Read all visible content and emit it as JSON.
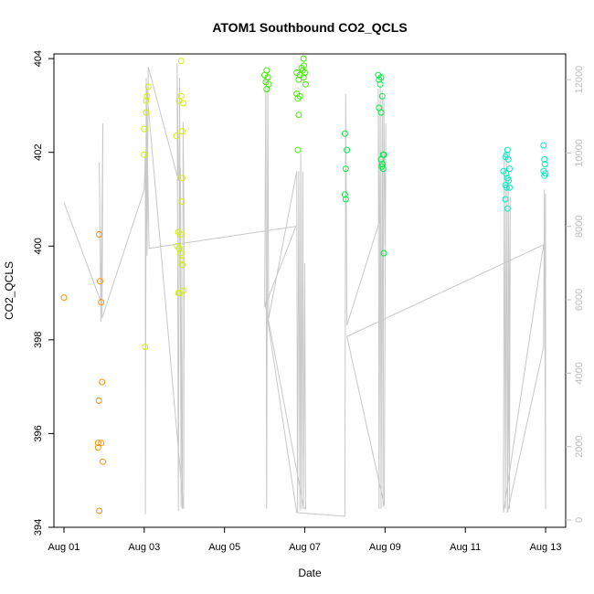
{
  "chart_data": {
    "type": "scatter",
    "title": "ATOM1 Southbound CO2_QCLS",
    "xlabel": "Date",
    "ylabel": "CO2_QCLS",
    "x_ticks": [
      "Aug 01",
      "Aug 03",
      "Aug 05",
      "Aug 07",
      "Aug 09",
      "Aug 11",
      "Aug 13"
    ],
    "x_tick_days": [
      1,
      3,
      5,
      7,
      9,
      11,
      13
    ],
    "xlim": [
      0.75,
      13.5
    ],
    "ylim": [
      394,
      404.1
    ],
    "y_ticks": [
      394,
      396,
      398,
      400,
      402,
      404
    ],
    "y2_ticks": [
      0,
      2000,
      4000,
      6000,
      8000,
      10000,
      12000
    ],
    "y2lim": [
      -200,
      12700
    ],
    "colors": {
      "orange": "#ff8c00",
      "yellowgreen": "#d4f000",
      "green": "#40ee00",
      "lime": "#00ee40",
      "cyan": "#00eec0",
      "altitude": "#c8c8c8"
    },
    "series": [
      {
        "color": "#ff8c00",
        "points": [
          [
            1.0,
            398.9
          ],
          [
            1.88,
            400.25
          ],
          [
            1.9,
            399.25
          ],
          [
            1.93,
            398.8
          ],
          [
            1.95,
            397.1
          ],
          [
            1.87,
            396.7
          ],
          [
            1.85,
            395.8
          ],
          [
            1.93,
            395.8
          ],
          [
            1.85,
            395.7
          ],
          [
            1.97,
            395.4
          ],
          [
            1.88,
            394.35
          ]
        ]
      },
      {
        "color": "#d4f000",
        "points": [
          [
            3.02,
            397.85
          ],
          [
            3.0,
            401.95
          ],
          [
            3.0,
            402.5
          ],
          [
            3.05,
            402.85
          ],
          [
            3.05,
            403.1
          ],
          [
            3.07,
            403.2
          ],
          [
            3.1,
            403.4
          ],
          [
            3.8,
            402.35
          ],
          [
            3.87,
            403.1
          ],
          [
            3.92,
            403.2
          ],
          [
            3.97,
            403.05
          ],
          [
            3.92,
            403.95
          ],
          [
            3.95,
            402.45
          ],
          [
            3.95,
            401.45
          ],
          [
            3.93,
            400.95
          ],
          [
            3.85,
            400.3
          ],
          [
            3.9,
            400.25
          ],
          [
            3.82,
            400.0
          ],
          [
            3.87,
            399.95
          ],
          [
            3.9,
            399.85
          ],
          [
            3.93,
            399.7
          ],
          [
            3.95,
            399.6
          ],
          [
            3.97,
            399.05
          ],
          [
            3.85,
            399.0
          ],
          [
            3.88,
            399.0
          ]
        ]
      },
      {
        "color": "#40ee00",
        "points": [
          [
            6.0,
            403.65
          ],
          [
            6.03,
            403.5
          ],
          [
            6.05,
            403.75
          ],
          [
            6.08,
            403.6
          ],
          [
            6.1,
            403.45
          ],
          [
            6.05,
            403.35
          ],
          [
            6.8,
            403.7
          ],
          [
            6.85,
            403.55
          ],
          [
            6.88,
            403.65
          ],
          [
            6.92,
            403.8
          ],
          [
            6.95,
            403.75
          ],
          [
            6.97,
            403.6
          ],
          [
            7.0,
            403.7
          ],
          [
            7.02,
            403.45
          ],
          [
            6.97,
            404.0
          ],
          [
            6.98,
            403.85
          ],
          [
            6.8,
            403.25
          ],
          [
            6.83,
            403.15
          ],
          [
            6.88,
            403.2
          ],
          [
            6.85,
            402.8
          ],
          [
            6.83,
            402.05
          ]
        ]
      },
      {
        "color": "#00ee40",
        "points": [
          [
            8.0,
            402.4
          ],
          [
            8.02,
            401.65
          ],
          [
            8.05,
            402.05
          ],
          [
            8.0,
            401.1
          ],
          [
            8.02,
            401.0
          ],
          [
            8.83,
            403.65
          ],
          [
            8.85,
            403.55
          ],
          [
            8.9,
            403.6
          ],
          [
            8.88,
            403.45
          ],
          [
            8.85,
            402.95
          ],
          [
            8.9,
            402.85
          ],
          [
            8.93,
            403.2
          ],
          [
            8.9,
            401.85
          ],
          [
            8.93,
            401.75
          ],
          [
            8.95,
            401.95
          ],
          [
            8.97,
            401.95
          ],
          [
            8.92,
            401.7
          ],
          [
            8.95,
            401.65
          ],
          [
            8.97,
            399.85
          ]
        ]
      },
      {
        "color": "#00eec0",
        "points": [
          [
            11.95,
            401.6
          ],
          [
            12.0,
            401.9
          ],
          [
            12.03,
            401.95
          ],
          [
            12.05,
            402.05
          ],
          [
            12.07,
            401.85
          ],
          [
            12.02,
            401.55
          ],
          [
            12.1,
            401.65
          ],
          [
            12.05,
            401.45
          ],
          [
            12.08,
            401.4
          ],
          [
            12.0,
            401.3
          ],
          [
            12.03,
            401.25
          ],
          [
            12.1,
            401.25
          ],
          [
            12.0,
            401.0
          ],
          [
            12.05,
            400.8
          ],
          [
            12.95,
            402.15
          ],
          [
            12.97,
            401.85
          ],
          [
            12.98,
            401.75
          ],
          [
            12.95,
            401.6
          ],
          [
            12.97,
            401.5
          ],
          [
            13.0,
            401.55
          ]
        ]
      }
    ],
    "altitude_series": {
      "name": "altitude",
      "axis": "right",
      "points": [
        [
          1.0,
          8650
        ],
        [
          1.92,
          5950
        ],
        [
          1.88,
          9750
        ],
        [
          1.92,
          5400
        ],
        [
          1.97,
          10800
        ],
        [
          1.95,
          5500
        ],
        [
          3.0,
          9000
        ],
        [
          3.03,
          10000
        ],
        [
          3.03,
          150
        ],
        [
          3.05,
          12050
        ],
        [
          3.07,
          7200
        ],
        [
          3.1,
          12350
        ],
        [
          3.85,
          9250
        ],
        [
          3.82,
          12450
        ],
        [
          3.85,
          250
        ],
        [
          3.88,
          12050
        ],
        [
          3.92,
          350
        ],
        [
          3.9,
          9600
        ],
        [
          3.95,
          300
        ],
        [
          3.97,
          10850
        ],
        [
          4.0,
          7000
        ],
        [
          3.98,
          300
        ],
        [
          3.05,
          11900
        ],
        [
          3.12,
          7400
        ],
        [
          6.78,
          8000
        ],
        [
          6.0,
          5800
        ],
        [
          6.03,
          12100
        ],
        [
          6.05,
          300
        ],
        [
          6.08,
          12000
        ],
        [
          6.1,
          5500
        ],
        [
          6.8,
          9500
        ],
        [
          6.82,
          200
        ],
        [
          6.85,
          9500
        ],
        [
          6.88,
          250
        ],
        [
          6.9,
          10000
        ],
        [
          6.92,
          300
        ],
        [
          6.95,
          9500
        ],
        [
          6.97,
          300
        ],
        [
          7.0,
          7000
        ],
        [
          7.02,
          300
        ],
        [
          6.97,
          350
        ],
        [
          6.0,
          6000
        ],
        [
          6.8,
          200
        ],
        [
          8.0,
          100
        ],
        [
          8.02,
          11600
        ],
        [
          8.05,
          5300
        ],
        [
          8.85,
          8100
        ],
        [
          8.83,
          11750
        ],
        [
          8.85,
          300
        ],
        [
          8.88,
          11800
        ],
        [
          8.9,
          300
        ],
        [
          8.93,
          11700
        ],
        [
          8.95,
          350
        ],
        [
          8.97,
          11500
        ],
        [
          9.0,
          7500
        ],
        [
          9.02,
          10800
        ],
        [
          8.98,
          400
        ],
        [
          8.05,
          5000
        ],
        [
          12.95,
          7500
        ],
        [
          11.95,
          200
        ],
        [
          11.97,
          9900
        ],
        [
          12.0,
          300
        ],
        [
          12.02,
          10000
        ],
        [
          12.05,
          300
        ],
        [
          12.07,
          9600
        ],
        [
          12.1,
          300
        ],
        [
          12.12,
          8800
        ],
        [
          12.05,
          200
        ],
        [
          12.95,
          4700
        ],
        [
          12.97,
          9000
        ],
        [
          13.0,
          300
        ],
        [
          13.0,
          8900
        ]
      ]
    }
  }
}
